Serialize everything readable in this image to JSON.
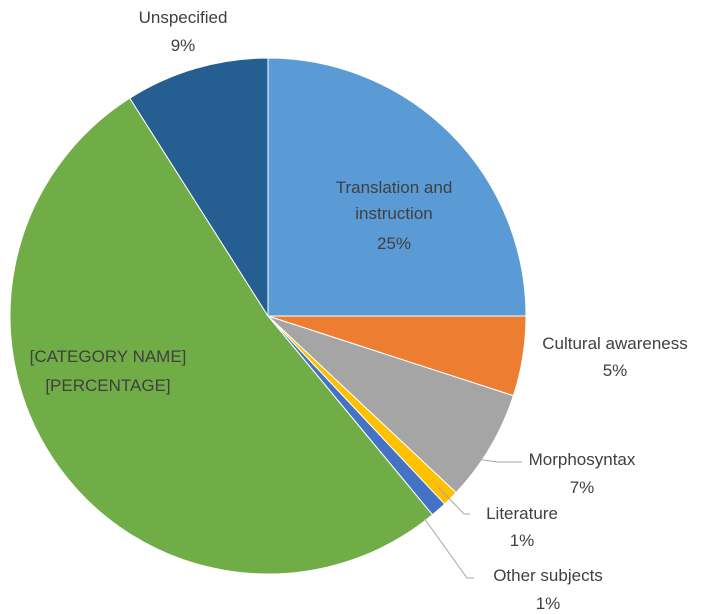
{
  "chart_data": {
    "type": "pie",
    "categories": [
      "Translation and instruction",
      "Cultural awareness",
      "Morphosyntax",
      "Literature",
      "Other subjects",
      "[CATEGORY NAME]",
      "Unspecified"
    ],
    "values": [
      25,
      5,
      7,
      1,
      1,
      52,
      9
    ],
    "value_labels": [
      "25%",
      "5%",
      "7%",
      "1%",
      "1%",
      "[PERCENTAGE]",
      "9%"
    ],
    "colors": [
      "#5b9bd5",
      "#ed7d31",
      "#a5a5a5",
      "#ffc000",
      "#4472c4",
      "#70ad47",
      "#255e91"
    ]
  }
}
